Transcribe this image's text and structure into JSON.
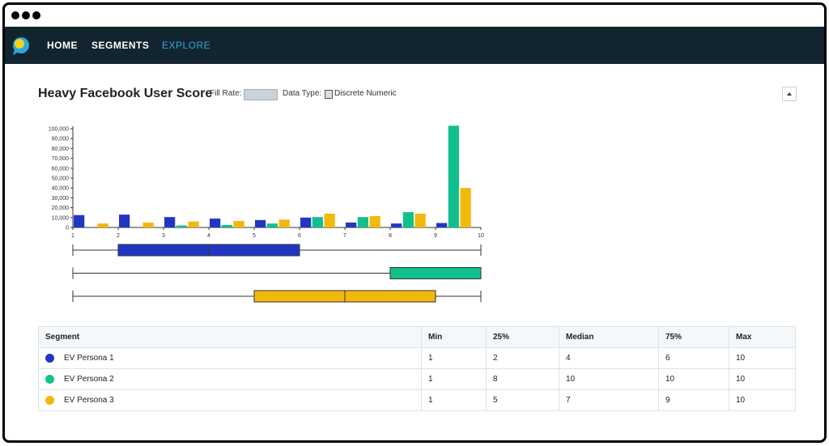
{
  "nav": {
    "items": [
      "HOME",
      "SEGMENTS",
      "EXPLORE"
    ]
  },
  "header": {
    "title": "Heavy Facebook User Score",
    "fill_rate_label": "Fill Rate:",
    "data_type_label": "Data Type:",
    "data_type": "Discrete Numeric"
  },
  "chart_data": {
    "type": "bar",
    "x": [
      1,
      2,
      3,
      4,
      5,
      6,
      7,
      8,
      9
    ],
    "xlim": [
      1,
      10
    ],
    "xticks": [
      1,
      2,
      3,
      4,
      5,
      6,
      7,
      8,
      9,
      10
    ],
    "ylim": [
      0,
      100000
    ],
    "yticks": [
      0,
      {
        "value": 10000,
        "label": "10,000"
      },
      {
        "value": 20000,
        "label": "20,000"
      },
      {
        "value": 30000,
        "label": "30,000"
      },
      {
        "value": 40000,
        "label": "40,000"
      },
      {
        "value": 50000,
        "label": "50,000"
      },
      {
        "value": 60000,
        "label": "60,000"
      },
      {
        "value": 70000,
        "label": "70,000"
      },
      {
        "value": 80000,
        "label": "80,000"
      },
      {
        "value": 90000,
        "label": "90,000"
      },
      {
        "value": 100000,
        "label": "100,000"
      }
    ],
    "series": [
      {
        "name": "EV Persona 1",
        "color": "#2236c4",
        "values": [
          12500,
          13000,
          10500,
          9000,
          7500,
          10000,
          5000,
          4000,
          4500
        ],
        "stats": [
          1,
          2,
          4,
          6,
          10
        ]
      },
      {
        "name": "EV Persona 2",
        "color": "#13c08d",
        "values": [
          0,
          0,
          2000,
          2500,
          4000,
          10500,
          10500,
          15500,
          103000
        ],
        "stats": [
          1,
          8,
          10,
          10,
          10
        ]
      },
      {
        "name": "EV Persona 3",
        "color": "#f2b80c",
        "values": [
          4000,
          5000,
          6000,
          6500,
          8000,
          14000,
          11500,
          14000,
          40000
        ],
        "stats": [
          1,
          5,
          7,
          9,
          10
        ]
      }
    ]
  },
  "table": {
    "columns": [
      "Segment",
      "Min",
      "25%",
      "Median",
      "75%",
      "Max"
    ]
  }
}
